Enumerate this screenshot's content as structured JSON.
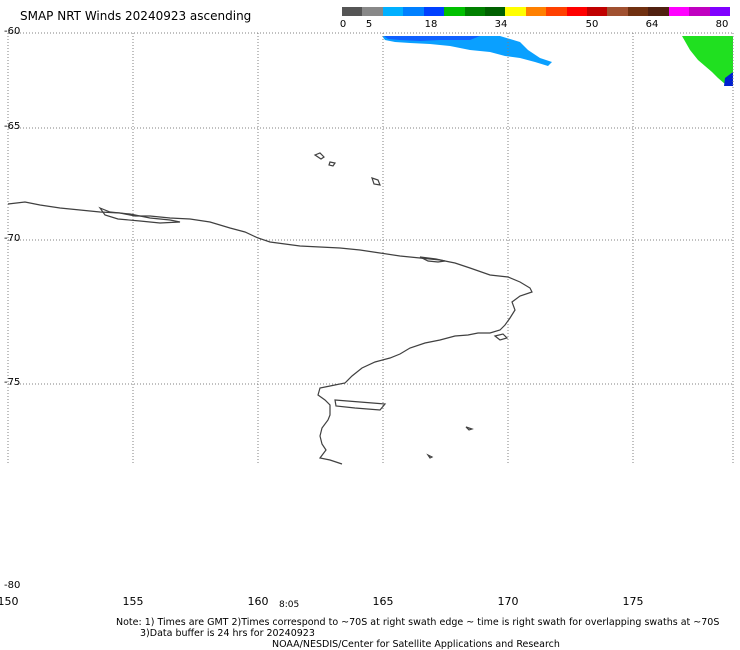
{
  "title": "SMAP NRT Winds 20240923 ascending",
  "scale": {
    "labels": [
      "0",
      "5",
      "18",
      "34",
      "50",
      "64",
      "80"
    ],
    "colors": [
      "#555555",
      "#888888",
      "#00b0ff",
      "#0080ff",
      "#0040ff",
      "#00c000",
      "#008000",
      "#006000",
      "#ffff00",
      "#ff8000",
      "#ff4000",
      "#ff0000",
      "#c00000",
      "#a05030",
      "#703010",
      "#502010",
      "#ff00ff",
      "#c000c0",
      "#8000ff"
    ]
  },
  "map": {
    "lat_labels": [
      "-60",
      "-65",
      "-70",
      "-75",
      "-80"
    ],
    "lon_labels": [
      "150",
      "155",
      "160",
      "165",
      "170",
      "175"
    ],
    "time_label": "8:05",
    "swath_colors": {
      "light_blue": "#0aa0ff",
      "blue": "#1060ff",
      "dark_blue": "#0020d0",
      "green": "#20e020"
    },
    "grid_color": "#808080",
    "coast_color": "#404040"
  },
  "notes": {
    "line1": "Note: 1) Times are GMT 2)Times correspond to ~70S at right swath edge ~ time is right swath for overlapping swaths at ~70S",
    "line2": "3)Data buffer is 24 hrs for 20240923",
    "line3": "NOAA/NESDIS/Center for Satellite Applications and Research"
  }
}
